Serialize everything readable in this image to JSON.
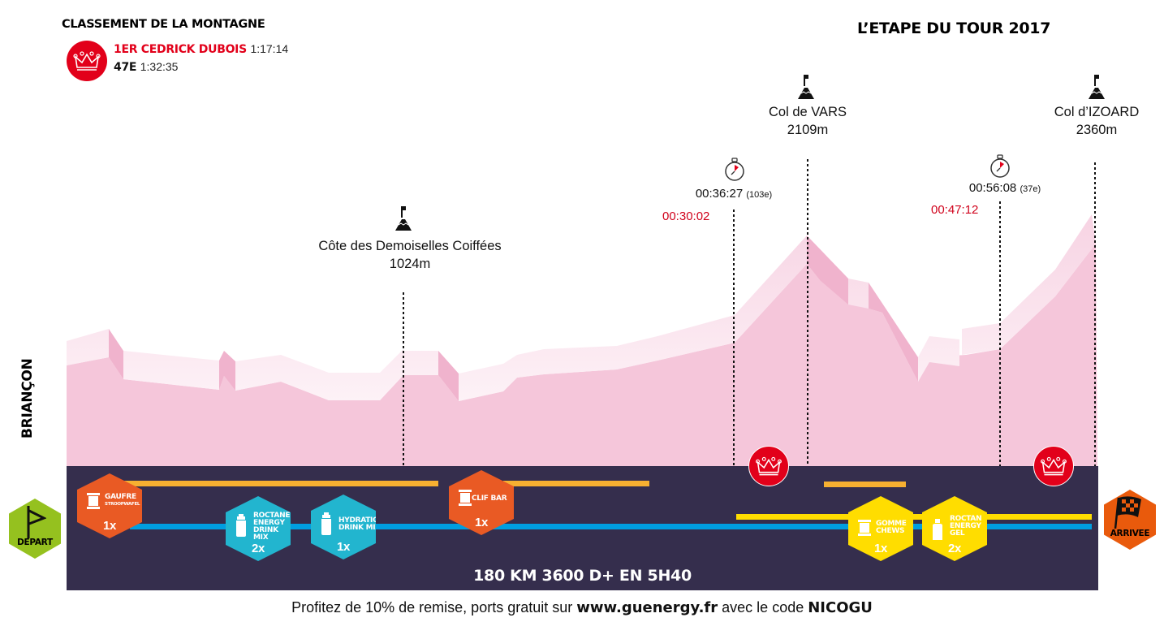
{
  "header": {
    "title_left": "CLASSEMENT DE LA MONTAGNE",
    "title_right": "L’ETAPE DU TOUR 2017",
    "leader_rank": "1ER CEDRICK DUBOIS",
    "leader_time": "1:17:14",
    "my_rank": "47E",
    "my_time": "1:32:35"
  },
  "start_town": "BRIANÇON",
  "summits": [
    {
      "name": "Côte des Demoiselles Coiffées",
      "altitude": "1024m",
      "icon": "summit-flag-icon"
    },
    {
      "name": "Col de VARS",
      "altitude": "2109m",
      "icon": "summit-flag-icon"
    },
    {
      "name": "Col d’IZOARD",
      "altitude": "2360m",
      "icon": "summit-flag-icon"
    }
  ],
  "climb_splits": [
    {
      "time": "00:36:27",
      "rank": "(103e)",
      "best_time": "00:30:02",
      "icon": "stopwatch-icon"
    },
    {
      "time": "00:56:08",
      "rank": "(37e)",
      "best_time": "00:47:12",
      "icon": "stopwatch-icon"
    }
  ],
  "nutrition": [
    {
      "name": "GAUFRE",
      "sub": "STROOPWAFEL",
      "qty": "1x",
      "color": "#e95a24",
      "icon": "bar-icon"
    },
    {
      "name": "ROCTANE\nENERGY\nDRINK MIX",
      "sub": "",
      "qty": "2x",
      "color": "#22b5cf",
      "icon": "bottle-icon"
    },
    {
      "name": "HYDRATION\nDRINK MIX",
      "sub": "",
      "qty": "1x",
      "color": "#22b5cf",
      "icon": "bottle-icon"
    },
    {
      "name": "CLIF BAR",
      "sub": "",
      "qty": "1x",
      "color": "#e95a24",
      "icon": "bar-icon"
    },
    {
      "name": "GOMME\nCHEWS",
      "sub": "",
      "qty": "1x",
      "color": "#ffdd00",
      "icon": "bar-icon"
    },
    {
      "name": "ROCTAN\nENERGY\nGEL",
      "sub": "",
      "qty": "2x",
      "color": "#ffdd00",
      "icon": "gel-icon"
    }
  ],
  "start_label": "DEPART",
  "finish_label": "ARRIVEE",
  "summary": "180 KM 3600 D+ EN 5H40",
  "promo": {
    "text_1": "Profitez de 10% de remise, ports gratuit sur ",
    "site": "www.guenergy.fr",
    "text_2": " avec le code ",
    "code": "NICOGU"
  },
  "colors": {
    "band": "#352e4d",
    "profile": "#f5c6da",
    "accent_red": "#e2001a",
    "gold": "#f7b031",
    "yellow": "#ffdd00",
    "blue": "#009ee0",
    "start_green": "#95c11f",
    "finish_orange": "#e95a0c"
  }
}
